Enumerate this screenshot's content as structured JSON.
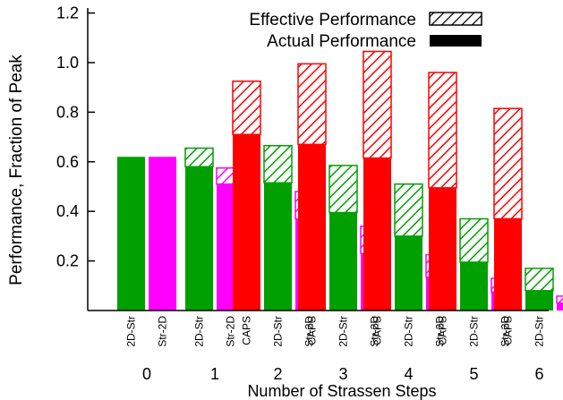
{
  "chart_data": {
    "type": "bar",
    "ylabel": "Performance, Fraction of Peak",
    "xlabel": "Number of Strassen Steps",
    "ylim": [
      0,
      1.22
    ],
    "yticks": [
      "0.2",
      "0.4",
      "0.6",
      "0.8",
      "1.0",
      "1.2"
    ],
    "ytick_values": [
      0.2,
      0.4,
      0.6,
      0.8,
      1.0,
      1.2
    ],
    "legend": {
      "effective": "Effective Performance",
      "actual": "Actual Performance",
      "placement": "top-right"
    },
    "colors": {
      "CAPS": "#ff0000",
      "2D-Str": "#00a000",
      "Str-2D": "#ff00ff"
    },
    "groups": [
      {
        "step": "0",
        "bars": [
          {
            "algorithm": "2D-Str",
            "actual": 0.62,
            "effective": 0.62
          },
          {
            "algorithm": "Str-2D",
            "actual": 0.62,
            "effective": 0.62
          }
        ]
      },
      {
        "step": "1",
        "bars": [
          {
            "algorithm": "2D-Str",
            "actual": 0.58,
            "effective": 0.655
          },
          {
            "algorithm": "Str-2D",
            "actual": 0.51,
            "effective": 0.575
          }
        ]
      },
      {
        "step": "2",
        "bars": [
          {
            "algorithm": "CAPS",
            "actual": 0.71,
            "effective": 0.925
          },
          {
            "algorithm": "2D-Str",
            "actual": 0.515,
            "effective": 0.665
          },
          {
            "algorithm": "Str-2D",
            "actual": 0.37,
            "effective": 0.48
          }
        ]
      },
      {
        "step": "3",
        "bars": [
          {
            "algorithm": "CAPS",
            "actual": 0.67,
            "effective": 0.995
          },
          {
            "algorithm": "2D-Str",
            "actual": 0.395,
            "effective": 0.585
          },
          {
            "algorithm": "Str-2D",
            "actual": 0.23,
            "effective": 0.34
          }
        ]
      },
      {
        "step": "4",
        "bars": [
          {
            "algorithm": "CAPS",
            "actual": 0.615,
            "effective": 1.045
          },
          {
            "algorithm": "2D-Str",
            "actual": 0.3,
            "effective": 0.51
          },
          {
            "algorithm": "Str-2D",
            "actual": 0.135,
            "effective": 0.225
          }
        ]
      },
      {
        "step": "5",
        "bars": [
          {
            "algorithm": "CAPS",
            "actual": 0.495,
            "effective": 0.96
          },
          {
            "algorithm": "2D-Str",
            "actual": 0.195,
            "effective": 0.37
          },
          {
            "algorithm": "Str-2D",
            "actual": 0.075,
            "effective": 0.13
          }
        ]
      },
      {
        "step": "6",
        "bars": [
          {
            "algorithm": "CAPS",
            "actual": 0.37,
            "effective": 0.815
          },
          {
            "algorithm": "2D-Str",
            "actual": 0.08,
            "effective": 0.17
          },
          {
            "algorithm": "Str-2D",
            "actual": 0.03,
            "effective": 0.058
          }
        ]
      }
    ]
  }
}
